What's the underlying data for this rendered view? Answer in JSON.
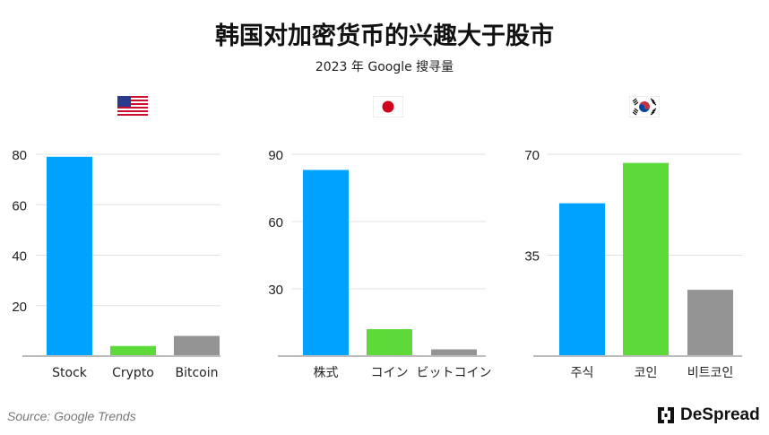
{
  "title": "韩国对加密货币的兴趣大于股市",
  "subtitle": "2023 年 Google 搜寻量",
  "source": "Source: Google Trends",
  "logo_text": "DeSpread",
  "colors": {
    "stock": "#00a2ff",
    "coin": "#5dd93a",
    "bitcoin": "#949494",
    "grid": "#e0e0e0",
    "axis": "#bdbdbd"
  },
  "chart_data": [
    {
      "type": "bar",
      "flag": "us-flag",
      "categories": [
        "Stock",
        "Crypto",
        "Bitcoin"
      ],
      "values": [
        79,
        4,
        8
      ],
      "ylim": [
        0,
        80
      ],
      "yticks": [
        20,
        40,
        60,
        80
      ],
      "grid": true
    },
    {
      "type": "bar",
      "flag": "japan-flag",
      "categories": [
        "株式",
        "コイン",
        "ビットコイン"
      ],
      "values": [
        83,
        12,
        3
      ],
      "ylim": [
        0,
        90
      ],
      "yticks": [
        30,
        60,
        90
      ],
      "grid": true
    },
    {
      "type": "bar",
      "flag": "korea-flag",
      "categories": [
        "주식",
        "코인",
        "비트코인"
      ],
      "values": [
        53,
        67,
        23
      ],
      "ylim": [
        0,
        70
      ],
      "yticks": [
        35,
        70
      ],
      "grid": true
    }
  ]
}
